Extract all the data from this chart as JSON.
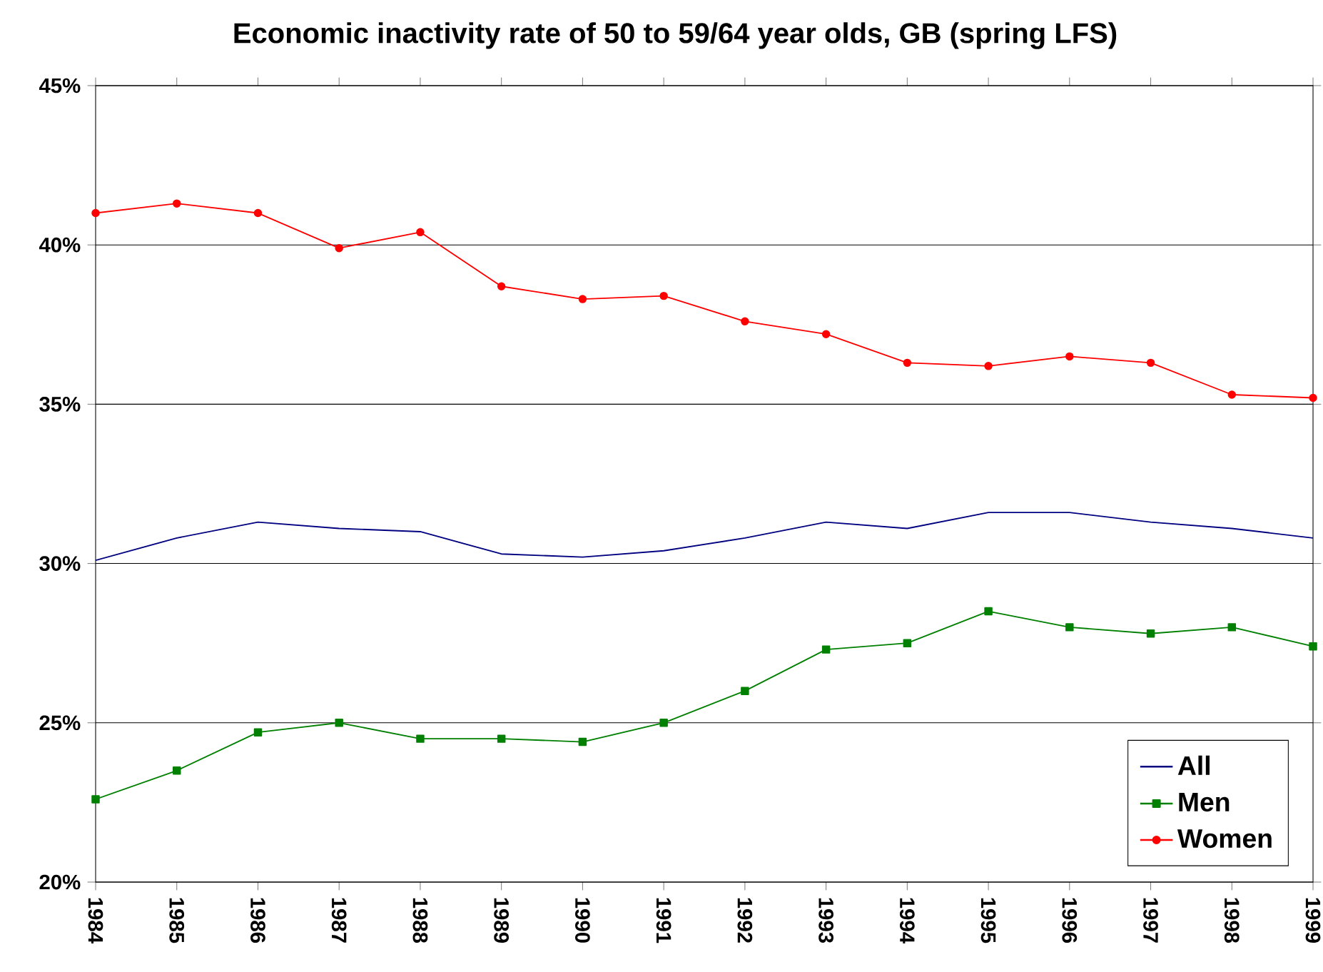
{
  "chart_data": {
    "type": "line",
    "title": "Economic inactivity rate of 50 to 59/64 year olds, GB (spring LFS)",
    "categories": [
      "1984",
      "1985",
      "1986",
      "1987",
      "1988",
      "1989",
      "1990",
      "1991",
      "1992",
      "1993",
      "1994",
      "1995",
      "1996",
      "1997",
      "1998",
      "1999"
    ],
    "series": [
      {
        "name": "All",
        "color": "#000080",
        "marker": "none",
        "values": [
          30.1,
          30.8,
          31.3,
          31.1,
          31.0,
          30.3,
          30.2,
          30.4,
          30.8,
          31.3,
          31.1,
          31.6,
          31.6,
          31.3,
          31.1,
          30.8
        ]
      },
      {
        "name": "Men",
        "color": "#008000",
        "marker": "square",
        "values": [
          22.6,
          23.5,
          24.7,
          25.0,
          24.5,
          24.5,
          24.4,
          25.0,
          26.0,
          27.3,
          27.5,
          28.5,
          28.0,
          27.8,
          28.0,
          27.4
        ]
      },
      {
        "name": "Women",
        "color": "#ff0000",
        "marker": "circle",
        "values": [
          41.0,
          41.3,
          41.0,
          39.9,
          40.4,
          38.7,
          38.3,
          38.4,
          37.6,
          37.2,
          36.3,
          36.2,
          36.5,
          36.3,
          35.3,
          35.2
        ]
      }
    ],
    "ylim": [
      20,
      45
    ],
    "yticks": [
      {
        "value": 20,
        "label": "20%"
      },
      {
        "value": 25,
        "label": "25%"
      },
      {
        "value": 30,
        "label": "30%"
      },
      {
        "value": 35,
        "label": "35%"
      },
      {
        "value": 40,
        "label": "40%"
      },
      {
        "value": 45,
        "label": "45%"
      }
    ],
    "grid": "y",
    "legend": "bottom right",
    "line_style": "solid"
  }
}
